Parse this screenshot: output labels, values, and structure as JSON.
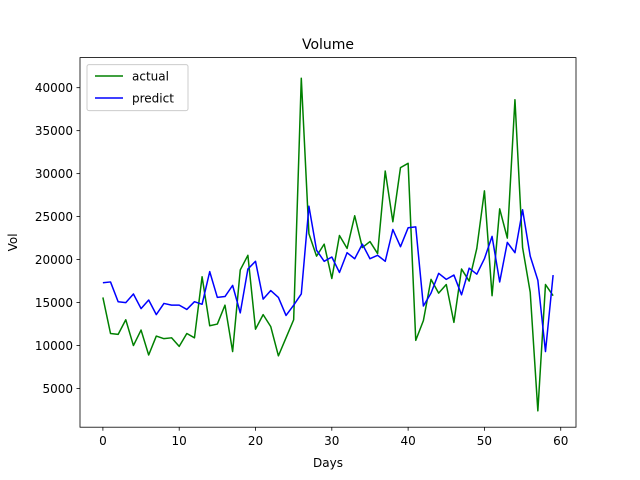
{
  "chart_data": {
    "type": "line",
    "title": "Volume",
    "xlabel": "Days",
    "ylabel": "Vol",
    "xlim": [
      -3,
      62
    ],
    "ylim": [
      500,
      43500
    ],
    "xticks": [
      0,
      10,
      20,
      30,
      40,
      50,
      60
    ],
    "yticks": [
      5000,
      10000,
      15000,
      20000,
      25000,
      30000,
      35000,
      40000
    ],
    "grid": false,
    "legend_position": "top-left",
    "x": [
      0,
      1,
      2,
      3,
      4,
      5,
      6,
      7,
      8,
      9,
      10,
      11,
      12,
      13,
      14,
      15,
      16,
      17,
      18,
      19,
      20,
      21,
      22,
      23,
      24,
      25,
      26,
      27,
      28,
      29,
      30,
      31,
      32,
      33,
      34,
      35,
      36,
      37,
      38,
      39,
      40,
      41,
      42,
      43,
      44,
      45,
      46,
      47,
      48,
      49,
      50,
      51,
      52,
      53,
      54,
      55,
      56,
      57,
      58,
      59
    ],
    "series": [
      {
        "name": "actual",
        "color": "#008000",
        "values": [
          15600,
          11400,
          11300,
          13000,
          10000,
          11800,
          8900,
          11100,
          10800,
          10900,
          9900,
          11400,
          10900,
          18000,
          12300,
          12500,
          14700,
          9300,
          18800,
          20500,
          11900,
          13600,
          12200,
          8800,
          10900,
          13000,
          41100,
          23000,
          20400,
          21800,
          17800,
          22800,
          21300,
          25100,
          21400,
          22100,
          20700,
          30300,
          24400,
          30700,
          31200,
          10600,
          12900,
          17700,
          16100,
          17100,
          12700,
          18900,
          17500,
          21300,
          28000,
          15800,
          25900,
          22500,
          38600,
          21400,
          16200,
          2400,
          17100,
          15800
        ]
      },
      {
        "name": "predict",
        "color": "#0000ff",
        "values": [
          17300,
          17400,
          15100,
          15000,
          16000,
          14300,
          15300,
          13600,
          14900,
          14700,
          14700,
          14200,
          15100,
          14800,
          18600,
          15600,
          15700,
          17000,
          13800,
          18900,
          19800,
          15400,
          16400,
          15600,
          13500,
          14700,
          16000,
          26200,
          21100,
          19800,
          20300,
          18500,
          20800,
          20100,
          21800,
          20100,
          20500,
          19800,
          23500,
          21500,
          23700,
          23800,
          14600,
          16100,
          18400,
          17700,
          18200,
          15900,
          19000,
          18300,
          20100,
          22700,
          17400,
          22000,
          20800,
          25800,
          20400,
          17600,
          9300,
          18200
        ]
      }
    ]
  }
}
